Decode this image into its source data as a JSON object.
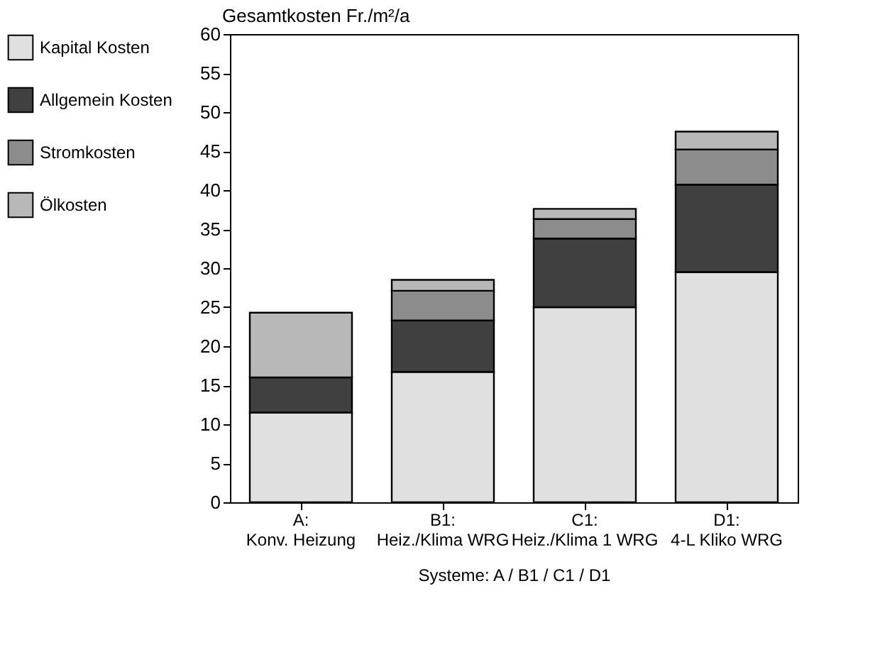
{
  "chart_data": {
    "type": "bar",
    "stacked": true,
    "categories": [
      "A:\nKonv. Heizung",
      "B1:\nHeiz./Klima WRG",
      "C1:\nHeiz./Klima 1 WRG",
      "D1:\n4-L Kliko WRG"
    ],
    "series": [
      {
        "name": "Kapital Kosten",
        "color": "#e0e0e0",
        "values": [
          11.5,
          16.7,
          25.0,
          29.5
        ]
      },
      {
        "name": "Allgemein Kosten",
        "color": "#404040",
        "values": [
          4.5,
          6.6,
          8.8,
          11.2
        ]
      },
      {
        "name": "Stromkosten",
        "color": "#8c8c8c",
        "values": [
          null,
          3.8,
          2.5,
          4.5
        ]
      },
      {
        "name": "Ölkosten",
        "color": "#b8b8b8",
        "values": [
          8.3,
          1.4,
          1.3,
          2.3
        ]
      }
    ],
    "ylabel": "Gesamtkosten Fr./m²/a",
    "xlabel": "Systeme: A / B1 / C1 / D1",
    "ylim": [
      0,
      60
    ],
    "yticks": [
      0,
      5,
      10,
      15,
      20,
      25,
      30,
      35,
      40,
      45,
      50,
      55,
      60
    ],
    "grid": false,
    "legend": "left"
  }
}
